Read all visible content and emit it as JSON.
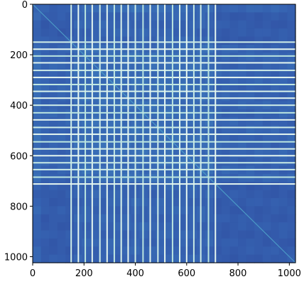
{
  "chart_data": {
    "type": "heatmap",
    "title": "",
    "xlabel": "",
    "ylabel": "",
    "matrix_size": 1024,
    "xlim": [
      0,
      1024
    ],
    "ylim": [
      1024,
      0
    ],
    "x_ticks": [
      0,
      200,
      400,
      600,
      800,
      1000
    ],
    "y_ticks": [
      0,
      200,
      400,
      600,
      800,
      1000
    ],
    "x_tick_labels": [
      "0",
      "200",
      "400",
      "600",
      "800",
      "1000"
    ],
    "y_tick_labels": [
      "0",
      "200",
      "400",
      "600",
      "800",
      "1000"
    ],
    "grid": false,
    "colormap": [
      "#2f4a9e",
      "#3561b0",
      "#3e7fbe",
      "#4fa3c8",
      "#8fd3d0",
      "#e6f7f0"
    ],
    "base_value": 0.15,
    "active_band": [
      145,
      715
    ],
    "bright_lines": [
      150,
      178,
      205,
      232,
      262,
      290,
      318,
      345,
      372,
      400,
      430,
      458,
      488,
      515,
      545,
      573,
      600,
      628,
      655,
      685,
      712
    ],
    "line_values": [
      0.95,
      1.0,
      0.9,
      1.0,
      0.95,
      1.0,
      0.92,
      0.97,
      1.0,
      0.95,
      0.9,
      1.0,
      0.95,
      1.0,
      0.9,
      0.97,
      1.0,
      0.93,
      0.95,
      0.9,
      1.0
    ]
  }
}
